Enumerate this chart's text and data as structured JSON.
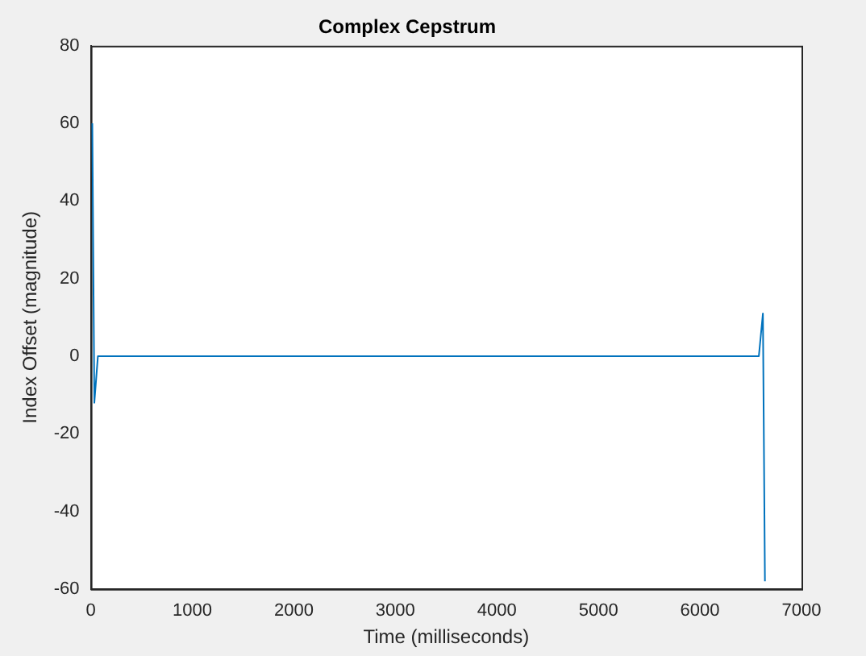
{
  "chart_data": {
    "type": "line",
    "title": "Complex Cepstrum",
    "xlabel": "Time (milliseconds)",
    "ylabel": "Index Offset (magnitude)",
    "x": [
      15,
      35,
      70,
      120,
      1000,
      2000,
      3000,
      4000,
      5000,
      6000,
      6500,
      6580,
      6620,
      6640
    ],
    "series": [
      {
        "color": "#0072bd",
        "values": [
          60,
          -12,
          0,
          0,
          0,
          0,
          0,
          0,
          0,
          0,
          0,
          0,
          11,
          -58
        ]
      }
    ],
    "xlim": [
      0,
      7000
    ],
    "xticks": [
      0,
      1000,
      2000,
      3000,
      4000,
      5000,
      6000,
      7000
    ],
    "ylim": [
      -60,
      80
    ],
    "yticks": [
      -60,
      -40,
      -20,
      0,
      20,
      40,
      60,
      80
    ],
    "grid": false,
    "legend": false,
    "marker": "none",
    "line_style": "solid"
  }
}
